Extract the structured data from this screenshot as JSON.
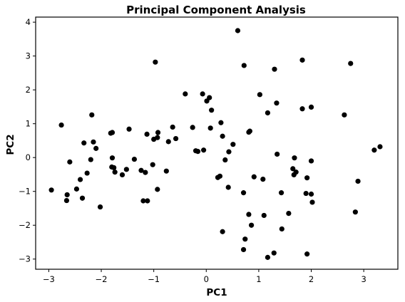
{
  "chart_data": {
    "type": "scatter",
    "title": "Principal Component Analysis",
    "xlabel": "PC1",
    "ylabel": "PC2",
    "xlim": [
      -3.25,
      3.65
    ],
    "ylim": [
      -3.3,
      4.15
    ],
    "xticks": [
      -3,
      -2,
      -1,
      0,
      1,
      2,
      3
    ],
    "yticks": [
      -3,
      -2,
      -1,
      0,
      1,
      2,
      3,
      4
    ],
    "grid": false,
    "color": "#000000",
    "points": [
      {
        "x": 0.6,
        "y": 3.75
      },
      {
        "x": -0.97,
        "y": 2.82
      },
      {
        "x": 0.72,
        "y": 2.72
      },
      {
        "x": 1.3,
        "y": 2.61
      },
      {
        "x": 1.83,
        "y": 2.88
      },
      {
        "x": 2.75,
        "y": 2.78
      },
      {
        "x": -0.4,
        "y": 1.88
      },
      {
        "x": -0.07,
        "y": 1.88
      },
      {
        "x": 0.01,
        "y": 1.67
      },
      {
        "x": 0.06,
        "y": 1.77
      },
      {
        "x": 0.1,
        "y": 1.4
      },
      {
        "x": 1.02,
        "y": 1.86
      },
      {
        "x": 1.34,
        "y": 1.61
      },
      {
        "x": 1.17,
        "y": 1.32
      },
      {
        "x": 1.83,
        "y": 1.44
      },
      {
        "x": 2.0,
        "y": 1.49
      },
      {
        "x": 2.63,
        "y": 1.26
      },
      {
        "x": -2.76,
        "y": 0.96
      },
      {
        "x": -2.18,
        "y": 1.26
      },
      {
        "x": -1.47,
        "y": 0.84
      },
      {
        "x": -1.82,
        "y": 0.72
      },
      {
        "x": -1.79,
        "y": 0.74
      },
      {
        "x": -1.13,
        "y": 0.69
      },
      {
        "x": -0.92,
        "y": 0.74
      },
      {
        "x": -0.93,
        "y": 0.59
      },
      {
        "x": -1.0,
        "y": 0.54
      },
      {
        "x": -0.64,
        "y": 0.9
      },
      {
        "x": -0.58,
        "y": 0.56
      },
      {
        "x": -0.72,
        "y": 0.47
      },
      {
        "x": -0.26,
        "y": 0.89
      },
      {
        "x": -0.2,
        "y": 0.2
      },
      {
        "x": -0.16,
        "y": 0.18
      },
      {
        "x": -0.05,
        "y": 0.22
      },
      {
        "x": 0.08,
        "y": 0.87
      },
      {
        "x": 0.28,
        "y": 1.03
      },
      {
        "x": 0.31,
        "y": 0.63
      },
      {
        "x": 0.51,
        "y": 0.39
      },
      {
        "x": 0.43,
        "y": 0.17
      },
      {
        "x": 0.36,
        "y": -0.07
      },
      {
        "x": 0.81,
        "y": 0.75
      },
      {
        "x": 0.83,
        "y": 0.78
      },
      {
        "x": 1.35,
        "y": 0.1
      },
      {
        "x": -2.33,
        "y": 0.43
      },
      {
        "x": -2.15,
        "y": 0.46
      },
      {
        "x": -2.1,
        "y": 0.27
      },
      {
        "x": -2.6,
        "y": -0.13
      },
      {
        "x": -2.2,
        "y": -0.06
      },
      {
        "x": -1.79,
        "y": -0.01
      },
      {
        "x": -1.8,
        "y": -0.28
      },
      {
        "x": -1.76,
        "y": -0.3
      },
      {
        "x": -1.74,
        "y": -0.43
      },
      {
        "x": -1.37,
        "y": -0.05
      },
      {
        "x": -1.52,
        "y": -0.35
      },
      {
        "x": -1.6,
        "y": -0.51
      },
      {
        "x": -1.24,
        "y": -0.38
      },
      {
        "x": -1.16,
        "y": -0.44
      },
      {
        "x": -1.02,
        "y": -0.21
      },
      {
        "x": -0.76,
        "y": -0.4
      },
      {
        "x": -2.27,
        "y": -0.46
      },
      {
        "x": -2.4,
        "y": -0.65
      },
      {
        "x": -2.95,
        "y": -0.96
      },
      {
        "x": -2.65,
        "y": -1.1
      },
      {
        "x": -2.47,
        "y": -0.93
      },
      {
        "x": -2.36,
        "y": -1.2
      },
      {
        "x": -2.66,
        "y": -1.27
      },
      {
        "x": -2.02,
        "y": -1.46
      },
      {
        "x": -0.93,
        "y": -0.94
      },
      {
        "x": -1.2,
        "y": -1.28
      },
      {
        "x": -1.12,
        "y": -1.28
      },
      {
        "x": 0.22,
        "y": -0.59
      },
      {
        "x": 0.26,
        "y": -0.55
      },
      {
        "x": 0.42,
        "y": -0.88
      },
      {
        "x": 0.91,
        "y": -0.57
      },
      {
        "x": 1.08,
        "y": -0.64
      },
      {
        "x": 0.71,
        "y": -1.04
      },
      {
        "x": 1.43,
        "y": -1.04
      },
      {
        "x": 1.65,
        "y": -0.33
      },
      {
        "x": 1.68,
        "y": -0.01
      },
      {
        "x": 1.71,
        "y": -0.43
      },
      {
        "x": 1.67,
        "y": -0.51
      },
      {
        "x": 1.92,
        "y": -0.6
      },
      {
        "x": 2.0,
        "y": -0.1
      },
      {
        "x": 1.9,
        "y": -1.06
      },
      {
        "x": 2.0,
        "y": -1.08
      },
      {
        "x": 2.02,
        "y": -1.32
      },
      {
        "x": 2.89,
        "y": -0.7
      },
      {
        "x": 3.2,
        "y": 0.22
      },
      {
        "x": 3.31,
        "y": 0.32
      },
      {
        "x": 2.84,
        "y": -1.61
      },
      {
        "x": 0.81,
        "y": -1.68
      },
      {
        "x": 1.1,
        "y": -1.71
      },
      {
        "x": 1.57,
        "y": -1.65
      },
      {
        "x": 0.86,
        "y": -2.0
      },
      {
        "x": 1.44,
        "y": -2.11
      },
      {
        "x": 0.31,
        "y": -2.19
      },
      {
        "x": 0.74,
        "y": -2.41
      },
      {
        "x": 0.71,
        "y": -2.72
      },
      {
        "x": 1.29,
        "y": -2.82
      },
      {
        "x": 1.17,
        "y": -2.95
      },
      {
        "x": 1.92,
        "y": -2.85
      }
    ]
  }
}
